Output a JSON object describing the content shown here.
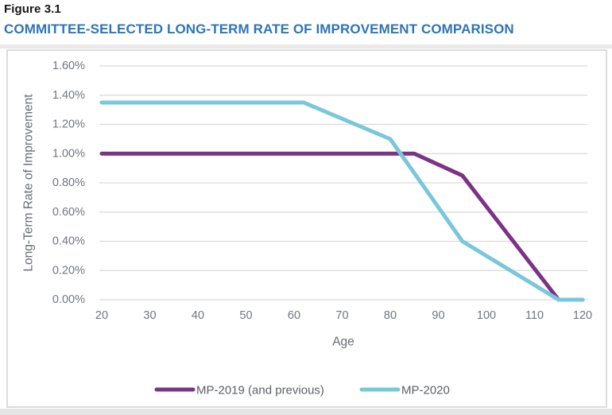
{
  "figure": {
    "label": "Figure 3.1",
    "title": "COMMITTEE-SELECTED LONG-TERM RATE OF IMPROVEMENT COMPARISON"
  },
  "colors": {
    "title_blue": "#2E75B6",
    "grid": "#d9d9d9",
    "frame_border": "#dcdcdc",
    "tick_text": "#71767e",
    "axis_title_text": "#686c72",
    "legend_text": "#5c6066"
  },
  "chart_data": {
    "type": "line",
    "title": "",
    "xlabel": "Age",
    "ylabel": "Long-Term Rate of Improvement",
    "xlim": [
      20,
      120
    ],
    "ylim": [
      0,
      1.6
    ],
    "grid": "horizontal",
    "legend_position": "bottom",
    "x_ticks": [
      20,
      30,
      40,
      50,
      60,
      70,
      80,
      90,
      100,
      110,
      120
    ],
    "y_ticks": [
      {
        "value": 0.0,
        "label": "0.00%"
      },
      {
        "value": 0.2,
        "label": "0.20%"
      },
      {
        "value": 0.4,
        "label": "0.40%"
      },
      {
        "value": 0.6,
        "label": "0.60%"
      },
      {
        "value": 0.8,
        "label": "0.80%"
      },
      {
        "value": 1.0,
        "label": "1.00%"
      },
      {
        "value": 1.2,
        "label": "1.20%"
      },
      {
        "value": 1.4,
        "label": "1.40%"
      },
      {
        "value": 1.6,
        "label": "1.60%"
      }
    ],
    "series": [
      {
        "name": "MP-2019 (and previous)",
        "color": "#7A3385",
        "x": [
          20,
          85,
          95,
          115,
          120
        ],
        "y": [
          1.0,
          1.0,
          0.85,
          0.0,
          0.0
        ]
      },
      {
        "name": "MP-2020",
        "color": "#79C7DA",
        "x": [
          20,
          62,
          80,
          95,
          115,
          120
        ],
        "y": [
          1.35,
          1.35,
          1.1,
          0.4,
          0.0,
          0.0
        ]
      }
    ]
  }
}
